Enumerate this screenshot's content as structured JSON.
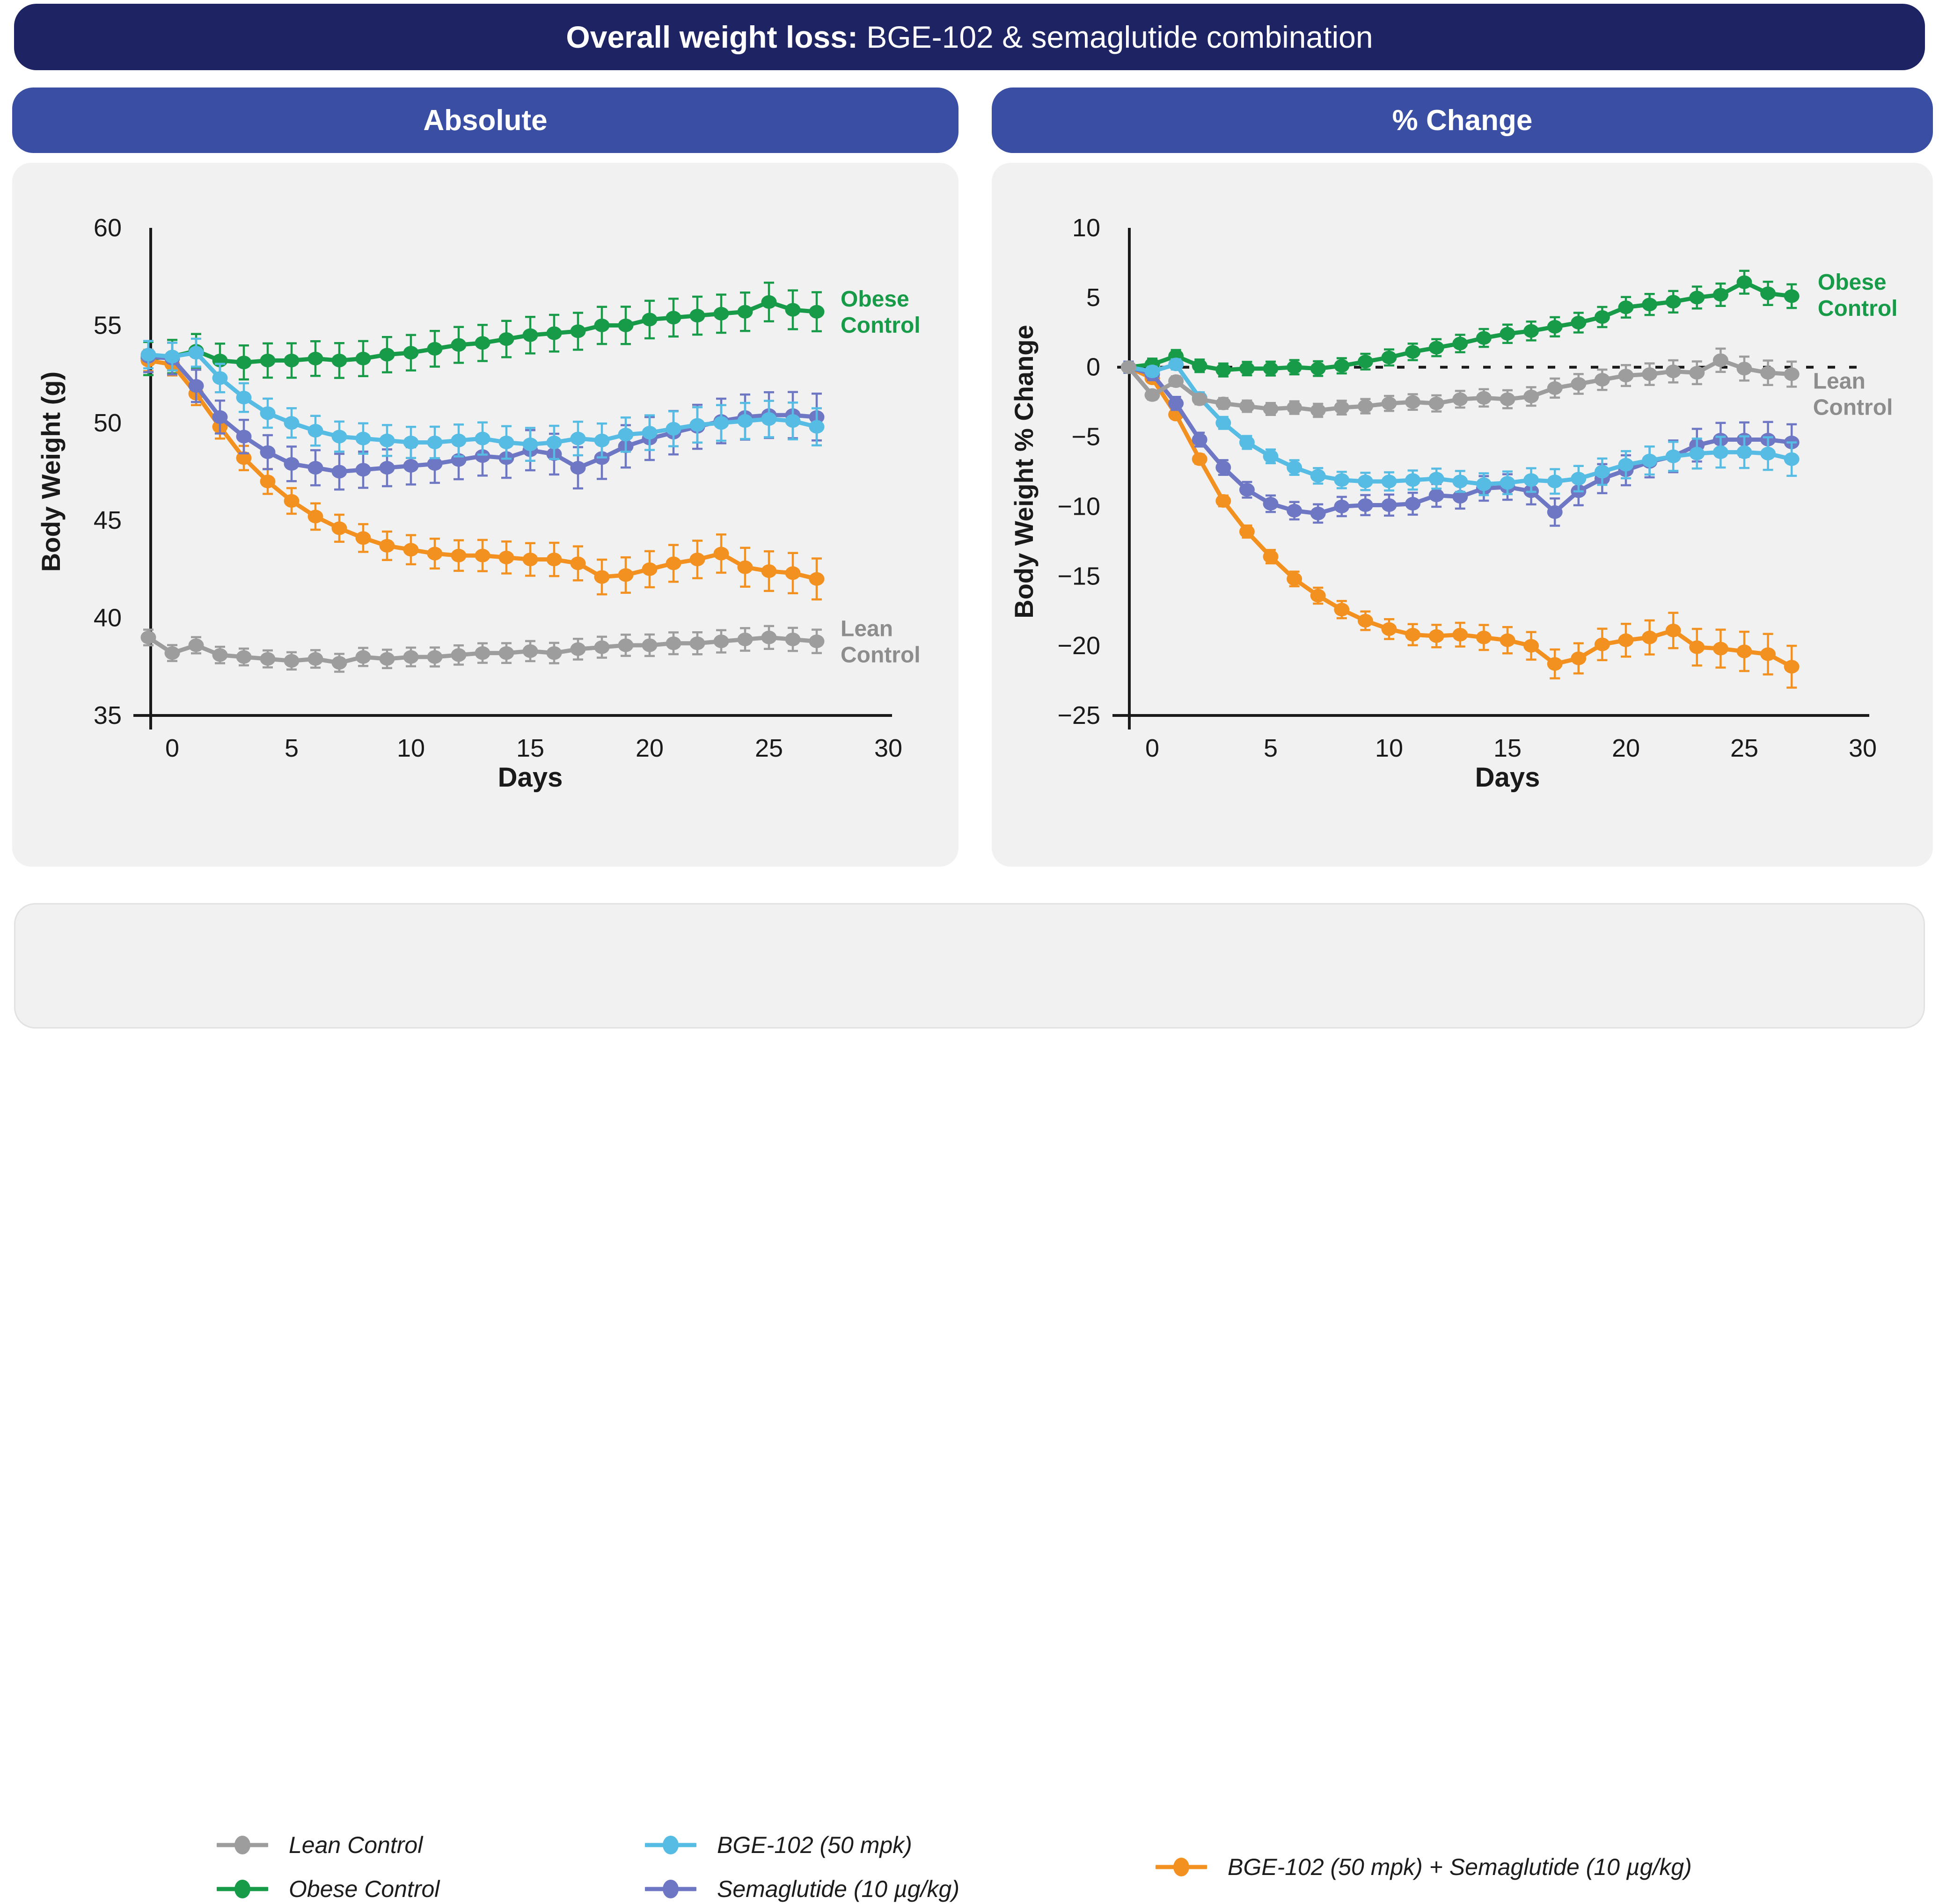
{
  "title": {
    "bold": "Overall weight loss:",
    "rest": " BGE-102 & semaglutide combination"
  },
  "panels": [
    {
      "header": "Absolute"
    },
    {
      "header": "% Change"
    }
  ],
  "colors": {
    "title_bar": "#1e2364",
    "panel_header": "#3a4ea3",
    "panel_bg": "#f2f1f1",
    "axis": "#1a1a1a",
    "lean": "#9d9d9d",
    "obese": "#189b48",
    "bge": "#56bce4",
    "sema": "#6d77c4",
    "combo": "#f39120"
  },
  "chart_data": [
    {
      "type": "line",
      "title": "Absolute",
      "xlabel": "Days",
      "ylabel": "Body Weight (g)",
      "xlim": [
        -1.2,
        30.5
      ],
      "ylim": [
        35,
        60
      ],
      "xticks": [
        0,
        5,
        10,
        15,
        20,
        25,
        30
      ],
      "xtick_labels": [
        "0",
        "5",
        "10",
        "15",
        "20",
        "25",
        "30"
      ],
      "yticks": [
        60,
        55,
        50,
        45,
        40,
        35
      ],
      "ytick_labels": [
        "60",
        "55",
        "50",
        "45",
        "40",
        "35"
      ],
      "grid": false,
      "zero_line": false,
      "x": [
        -1,
        0,
        1,
        2,
        3,
        4,
        5,
        6,
        7,
        8,
        9,
        10,
        11,
        12,
        13,
        14,
        15,
        16,
        17,
        18,
        19,
        20,
        21,
        22,
        23,
        24,
        25,
        26,
        27
      ],
      "series": [
        {
          "name": "Obese Control",
          "color": "#189b48",
          "values": [
            53.3,
            53.4,
            53.7,
            53.2,
            53.1,
            53.2,
            53.2,
            53.3,
            53.2,
            53.3,
            53.5,
            53.6,
            53.8,
            54.0,
            54.1,
            54.3,
            54.5,
            54.6,
            54.7,
            55.0,
            55.0,
            55.3,
            55.4,
            55.5,
            55.6,
            55.7,
            56.2,
            55.8,
            55.7
          ],
          "err": [
            0.85,
            1.0
          ]
        },
        {
          "name": "BGE-102 (50 mpk) + Semaglutide (10 µg/kg)",
          "color": "#f39120",
          "values": [
            53.2,
            53.0,
            51.5,
            49.8,
            48.2,
            47.0,
            46.0,
            45.2,
            44.6,
            44.1,
            43.7,
            43.5,
            43.3,
            43.2,
            43.2,
            43.1,
            43.0,
            43.0,
            42.8,
            42.1,
            42.2,
            42.5,
            42.8,
            43.0,
            43.3,
            42.6,
            42.4,
            42.3,
            42.0
          ],
          "err": [
            0.55,
            1.05
          ]
        },
        {
          "name": "Semaglutide (10 µg/kg)",
          "color": "#6d77c4",
          "values": [
            53.4,
            53.3,
            51.9,
            50.3,
            49.3,
            48.5,
            47.9,
            47.7,
            47.5,
            47.6,
            47.7,
            47.8,
            47.9,
            48.1,
            48.3,
            48.2,
            48.6,
            48.4,
            47.7,
            48.2,
            48.8,
            49.2,
            49.5,
            49.8,
            50.1,
            50.3,
            50.4,
            50.4,
            50.3
          ],
          "err": [
            0.8,
            1.2
          ]
        },
        {
          "name": "BGE-102 (50 mpk)",
          "color": "#56bce4",
          "values": [
            53.5,
            53.4,
            53.6,
            52.3,
            51.3,
            50.5,
            50.0,
            49.6,
            49.3,
            49.2,
            49.1,
            49.0,
            49.0,
            49.1,
            49.2,
            49.0,
            48.9,
            49.0,
            49.2,
            49.1,
            49.4,
            49.5,
            49.7,
            49.9,
            50.0,
            50.1,
            50.2,
            50.1,
            49.8
          ],
          "err": [
            0.7,
            0.95
          ]
        },
        {
          "name": "Lean Control",
          "color": "#9d9d9d",
          "values": [
            39.0,
            38.2,
            38.6,
            38.1,
            38.0,
            37.9,
            37.8,
            37.9,
            37.7,
            38.0,
            37.9,
            38.0,
            38.0,
            38.1,
            38.2,
            38.2,
            38.3,
            38.2,
            38.4,
            38.5,
            38.6,
            38.6,
            38.7,
            38.7,
            38.8,
            38.9,
            39.0,
            38.9,
            38.8
          ],
          "err": [
            0.4,
            0.6
          ]
        }
      ],
      "annotations": [
        {
          "lines": [
            "Obese",
            "Control"
          ],
          "color": "#189b48",
          "day": 28.0,
          "value": 55.7
        },
        {
          "lines": [
            "Lean",
            "Control"
          ],
          "color": "#8d8d8d",
          "day": 28.0,
          "value": 38.8
        }
      ]
    },
    {
      "type": "line",
      "title": "% Change",
      "xlabel": "Days",
      "ylabel": "Body Weight % Change",
      "xlim": [
        -1.2,
        30.5
      ],
      "ylim": [
        -25,
        10
      ],
      "xticks": [
        0,
        5,
        10,
        15,
        20,
        25,
        30
      ],
      "xtick_labels": [
        "0",
        "5",
        "10",
        "15",
        "20",
        "25",
        "30"
      ],
      "yticks": [
        10,
        5,
        0,
        -5,
        -10,
        -15,
        -20,
        -25
      ],
      "ytick_labels": [
        "10",
        "5",
        "0",
        "−5",
        "−10",
        "−15",
        "−20",
        "−25"
      ],
      "grid": false,
      "zero_line": true,
      "x": [
        -1,
        0,
        1,
        2,
        3,
        4,
        5,
        6,
        7,
        8,
        9,
        10,
        11,
        12,
        13,
        14,
        15,
        16,
        17,
        18,
        19,
        20,
        21,
        22,
        23,
        24,
        25,
        26,
        27
      ],
      "series": [
        {
          "name": "Obese Control",
          "color": "#189b48",
          "values": [
            0,
            0.2,
            0.8,
            0.1,
            -0.2,
            -0.1,
            -0.1,
            0.0,
            -0.1,
            0.1,
            0.4,
            0.7,
            1.1,
            1.4,
            1.7,
            2.1,
            2.4,
            2.6,
            2.9,
            3.2,
            3.6,
            4.3,
            4.5,
            4.7,
            5.0,
            5.2,
            6.1,
            5.3,
            5.1
          ],
          "err": [
            0.4,
            0.85
          ]
        },
        {
          "name": "BGE-102 (50 mpk) + Semaglutide (10 µg/kg)",
          "color": "#f39120",
          "values": [
            0,
            -0.8,
            -3.4,
            -6.6,
            -9.6,
            -11.8,
            -13.6,
            -15.2,
            -16.4,
            -17.4,
            -18.2,
            -18.8,
            -19.2,
            -19.3,
            -19.2,
            -19.4,
            -19.6,
            -20.0,
            -21.3,
            -20.9,
            -19.9,
            -19.6,
            -19.4,
            -18.9,
            -20.1,
            -20.2,
            -20.4,
            -20.6,
            -21.5
          ],
          "err": [
            0.2,
            1.5
          ]
        },
        {
          "name": "Semaglutide (10 µg/kg)",
          "color": "#6d77c4",
          "values": [
            0,
            -0.5,
            -2.6,
            -5.2,
            -7.2,
            -8.8,
            -9.8,
            -10.3,
            -10.5,
            -10.0,
            -9.9,
            -9.9,
            -9.8,
            -9.2,
            -9.3,
            -8.7,
            -8.6,
            -8.9,
            -10.4,
            -8.9,
            -8.0,
            -7.4,
            -6.8,
            -6.4,
            -5.6,
            -5.2,
            -5.2,
            -5.2,
            -5.4
          ],
          "err": [
            0.4,
            1.3
          ]
        },
        {
          "name": "BGE-102 (50 mpk)",
          "color": "#56bce4",
          "values": [
            0,
            -0.3,
            0.2,
            -2.2,
            -4.0,
            -5.4,
            -6.4,
            -7.2,
            -7.8,
            -8.1,
            -8.2,
            -8.2,
            -8.1,
            -8.0,
            -8.2,
            -8.4,
            -8.3,
            -8.1,
            -8.2,
            -8.0,
            -7.5,
            -7.0,
            -6.7,
            -6.4,
            -6.2,
            -6.1,
            -6.1,
            -6.2,
            -6.6
          ],
          "err": [
            0.3,
            1.2
          ]
        },
        {
          "name": "Lean Control",
          "color": "#9d9d9d",
          "values": [
            0,
            -2.0,
            -1.0,
            -2.3,
            -2.6,
            -2.8,
            -3.0,
            -2.9,
            -3.1,
            -2.9,
            -2.8,
            -2.6,
            -2.5,
            -2.6,
            -2.3,
            -2.2,
            -2.3,
            -2.1,
            -1.5,
            -1.2,
            -0.9,
            -0.6,
            -0.5,
            -0.3,
            -0.4,
            0.5,
            -0.1,
            -0.4,
            -0.5
          ],
          "err": [
            0.3,
            0.9
          ]
        }
      ],
      "annotations": [
        {
          "lines": [
            "Obese",
            "Control"
          ],
          "color": "#189b48",
          "day": 28.1,
          "value": 5.2
        },
        {
          "lines": [
            "Lean",
            "Control"
          ],
          "color": "#8d8d8d",
          "day": 27.9,
          "value": -1.9
        }
      ]
    }
  ],
  "legend": {
    "items": [
      {
        "label": "Lean Control",
        "color": "#9d9d9d"
      },
      {
        "label": "Obese Control",
        "color": "#189b48"
      },
      {
        "label": "BGE-102 (50 mpk)",
        "color": "#56bce4"
      },
      {
        "label": "Semaglutide (10 µg/kg)",
        "color": "#6d77c4"
      },
      {
        "label": "BGE-102 (50 mpk) + Semaglutide (10 µg/kg)",
        "color": "#f39120"
      }
    ]
  }
}
